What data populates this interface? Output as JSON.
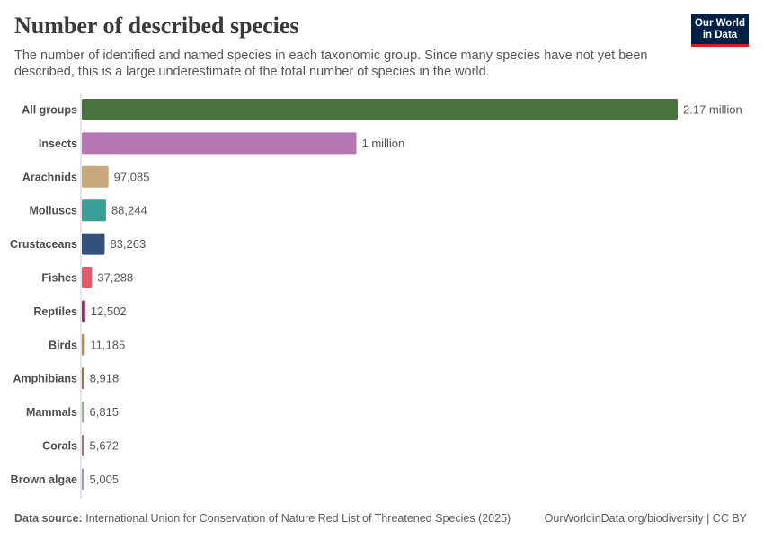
{
  "header": {
    "title": "Number of described species",
    "subtitle": "The number of identified and named species in each taxonomic group. Since many species have not yet been described, this is a large underestimate of the total number of species in the world."
  },
  "logo": {
    "line1": "Our World",
    "line2": "in Data",
    "bg": "#002147",
    "accent": "#ce261e"
  },
  "footer": {
    "source_label": "Data source:",
    "source_text": "International Union for Conservation of Nature Red List of Threatened Species (2025)",
    "url_text": "OurWorldinData.org/biodiversity | CC BY"
  },
  "chart_data": {
    "type": "bar",
    "orientation": "horizontal",
    "title": "Number of described species",
    "xlim": [
      0,
      2170000
    ],
    "categories": [
      "All groups",
      "Insects",
      "Arachnids",
      "Molluscs",
      "Crustaceans",
      "Fishes",
      "Reptiles",
      "Birds",
      "Amphibians",
      "Mammals",
      "Corals",
      "Brown algae"
    ],
    "values": [
      2170000,
      1000000,
      97085,
      88244,
      83263,
      37288,
      12502,
      11185,
      8918,
      6815,
      5672,
      5005
    ],
    "value_labels": [
      "2.17 million",
      "1 million",
      "97,085",
      "88,244",
      "83,263",
      "37,288",
      "12,502",
      "11,185",
      "8,918",
      "6,815",
      "5,672",
      "5,005"
    ],
    "colors": [
      "#4a7240",
      "#b676b3",
      "#c9a97c",
      "#3a9e99",
      "#34507c",
      "#e05a6b",
      "#a3296a",
      "#b98a45",
      "#c3603f",
      "#8cbc88",
      "#b56b70",
      "#8e9bc6"
    ]
  }
}
